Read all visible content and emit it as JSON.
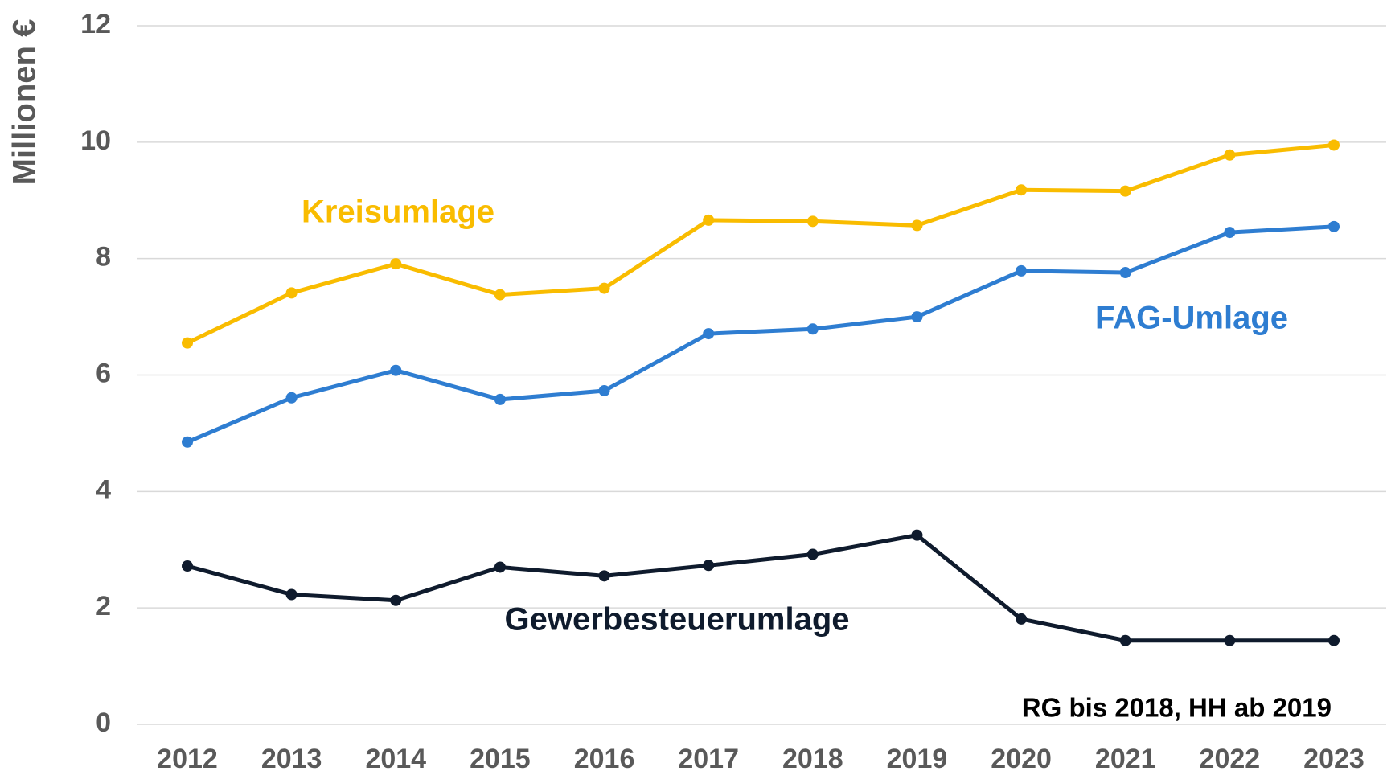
{
  "chart_data": {
    "type": "line",
    "y_label": "Millionen €",
    "annotation": "RG bis 2018, HH ab 2019",
    "categories": [
      "2012",
      "2013",
      "2014",
      "2015",
      "2016",
      "2017",
      "2018",
      "2019",
      "2020",
      "2021",
      "2022",
      "2023"
    ],
    "series": [
      {
        "name": "Kreisumlage",
        "color": "#f9bc00",
        "values": [
          6.55,
          7.41,
          7.91,
          7.38,
          7.49,
          8.66,
          8.64,
          8.57,
          9.18,
          9.16,
          9.78,
          9.95
        ]
      },
      {
        "name": "FAG-Umlage",
        "color": "#2e7dd1",
        "values": [
          4.85,
          5.61,
          6.08,
          5.58,
          5.73,
          6.71,
          6.79,
          7.0,
          7.79,
          7.76,
          8.45,
          8.55
        ]
      },
      {
        "name": "Gewerbesteuerumlage",
        "color": "#0f1b2d",
        "values": [
          2.72,
          2.23,
          2.13,
          2.7,
          2.55,
          2.73,
          2.92,
          3.25,
          1.81,
          1.44,
          1.44,
          1.44
        ]
      }
    ],
    "ylim": [
      0,
      12
    ],
    "yticks": [
      0,
      2,
      4,
      6,
      8,
      10,
      12
    ],
    "grid": true
  }
}
